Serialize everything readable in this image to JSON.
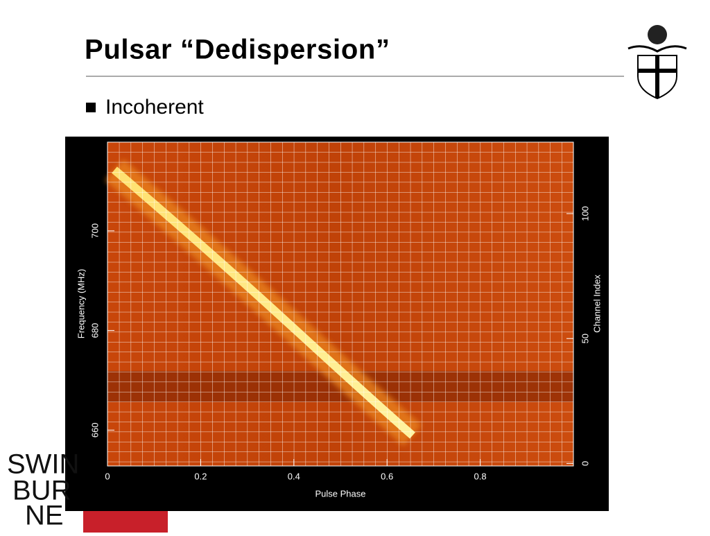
{
  "title": "Pulsar “Dedispersion”",
  "bullets": [
    "Incoherent"
  ],
  "figure": {
    "x_label": "Pulse Phase",
    "y_label": "Frequency (MHz)",
    "y2_label": "Channel Index",
    "xlim": [
      0,
      1
    ],
    "xticks": [
      0,
      0.2,
      0.4,
      0.6,
      0.8
    ],
    "ylim": [
      652.8,
      717.8
    ],
    "yticks": [
      660,
      680,
      700
    ],
    "y2lim": [
      -1,
      128.6
    ],
    "y2ticks": [
      0,
      50,
      100
    ]
  },
  "logo": [
    "SWIN",
    "BUR",
    "NE"
  ]
}
